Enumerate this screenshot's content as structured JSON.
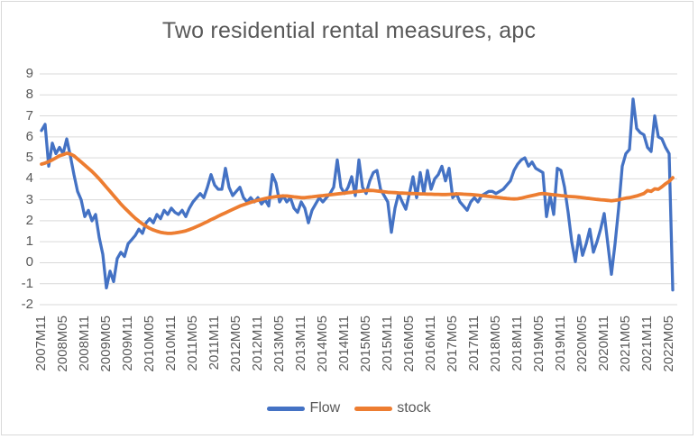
{
  "page": {
    "background": "#ffffff",
    "frame_border_color": "#d9d9d9"
  },
  "chart_data": {
    "type": "line",
    "title": "Two residential rental measures, apc",
    "title_color": "#595959",
    "axis_text_color": "#595959",
    "gridline_color": "#d9d9d9",
    "grid": "horizontal",
    "legend_position": "bottom",
    "x_start": "2007M11",
    "x_end": "2022M06",
    "x_frequency": "monthly",
    "x_tick_labels": [
      "2007M11",
      "2008M05",
      "2008M11",
      "2009M05",
      "2009M11",
      "2010M05",
      "2010M11",
      "2011M05",
      "2011M11",
      "2012M05",
      "2012M11",
      "2013M05",
      "2013M11",
      "2014M05",
      "2014M11",
      "2015M05",
      "2015M11",
      "2016M05",
      "2016M11",
      "2017M05",
      "2017M11",
      "2018M05",
      "2018M11",
      "2019M05",
      "2019M11",
      "2020M05",
      "2020M11",
      "2021M05",
      "2021M11",
      "2022M05"
    ],
    "x_ticks_every_n_points": 6,
    "y_ticks": [
      9,
      8,
      7,
      6,
      5,
      4,
      3,
      2,
      1,
      0,
      -1,
      -2
    ],
    "ylim": [
      -2,
      9
    ],
    "series": [
      {
        "name": "Flow",
        "color": "#4472C4",
        "values": [
          6.3,
          6.6,
          4.6,
          5.7,
          5.2,
          5.5,
          5.2,
          5.9,
          5.1,
          4.2,
          3.4,
          3.0,
          2.2,
          2.5,
          2.0,
          2.3,
          1.2,
          0.4,
          -1.2,
          -0.4,
          -0.9,
          0.2,
          0.5,
          0.3,
          0.9,
          1.1,
          1.3,
          1.6,
          1.4,
          1.9,
          2.1,
          1.9,
          2.3,
          2.1,
          2.5,
          2.3,
          2.6,
          2.4,
          2.3,
          2.5,
          2.2,
          2.6,
          2.9,
          3.1,
          3.3,
          3.1,
          3.6,
          4.2,
          3.7,
          3.5,
          3.5,
          4.5,
          3.6,
          3.2,
          3.4,
          3.6,
          3.1,
          2.9,
          3.1,
          2.9,
          3.1,
          2.8,
          3.0,
          2.7,
          4.2,
          3.8,
          2.9,
          3.2,
          2.9,
          3.1,
          2.6,
          2.4,
          2.9,
          2.6,
          1.9,
          2.5,
          2.8,
          3.1,
          2.9,
          3.1,
          3.3,
          3.6,
          4.9,
          3.6,
          3.3,
          3.6,
          4.1,
          3.2,
          4.9,
          3.6,
          3.3,
          3.9,
          4.3,
          4.4,
          3.5,
          3.2,
          2.9,
          1.45,
          2.6,
          3.3,
          2.9,
          2.55,
          3.3,
          4.1,
          3.1,
          4.3,
          3.3,
          4.4,
          3.5,
          4.0,
          4.2,
          4.6,
          3.9,
          4.5,
          3.1,
          3.3,
          2.9,
          2.7,
          2.5,
          2.9,
          3.1,
          2.9,
          3.2,
          3.3,
          3.4,
          3.4,
          3.3,
          3.4,
          3.5,
          3.7,
          3.9,
          4.4,
          4.7,
          4.9,
          5.0,
          4.6,
          4.8,
          4.5,
          4.4,
          4.3,
          2.2,
          3.2,
          2.3,
          4.5,
          4.4,
          3.6,
          2.4,
          1.0,
          0.05,
          1.3,
          0.35,
          0.9,
          1.6,
          0.5,
          1.0,
          1.6,
          2.35,
          0.9,
          -0.55,
          0.9,
          2.6,
          4.6,
          5.2,
          5.4,
          7.8,
          6.4,
          6.2,
          6.1,
          5.5,
          5.3,
          7.0,
          6.0,
          5.9,
          5.5,
          5.2,
          -1.3
        ]
      },
      {
        "name": "stock",
        "color": "#ED7D31",
        "values": [
          4.7,
          4.75,
          4.82,
          4.9,
          5.0,
          5.1,
          5.15,
          5.22,
          5.18,
          5.1,
          4.95,
          4.8,
          4.65,
          4.5,
          4.35,
          4.18,
          4.0,
          3.8,
          3.6,
          3.4,
          3.2,
          3.0,
          2.8,
          2.62,
          2.45,
          2.28,
          2.12,
          1.98,
          1.85,
          1.74,
          1.64,
          1.56,
          1.5,
          1.45,
          1.42,
          1.4,
          1.4,
          1.42,
          1.45,
          1.48,
          1.52,
          1.58,
          1.65,
          1.72,
          1.8,
          1.88,
          1.96,
          2.05,
          2.13,
          2.22,
          2.3,
          2.38,
          2.46,
          2.54,
          2.62,
          2.7,
          2.76,
          2.82,
          2.88,
          2.93,
          2.98,
          3.02,
          3.06,
          3.1,
          3.12,
          3.15,
          3.17,
          3.18,
          3.18,
          3.16,
          3.14,
          3.12,
          3.1,
          3.1,
          3.12,
          3.14,
          3.16,
          3.18,
          3.2,
          3.22,
          3.24,
          3.26,
          3.28,
          3.3,
          3.32,
          3.34,
          3.36,
          3.38,
          3.4,
          3.42,
          3.44,
          3.45,
          3.44,
          3.42,
          3.4,
          3.38,
          3.36,
          3.35,
          3.34,
          3.33,
          3.32,
          3.31,
          3.3,
          3.3,
          3.29,
          3.28,
          3.28,
          3.27,
          3.27,
          3.26,
          3.26,
          3.25,
          3.25,
          3.26,
          3.27,
          3.28,
          3.28,
          3.27,
          3.26,
          3.25,
          3.24,
          3.22,
          3.2,
          3.18,
          3.16,
          3.14,
          3.12,
          3.1,
          3.08,
          3.06,
          3.05,
          3.04,
          3.05,
          3.08,
          3.12,
          3.16,
          3.2,
          3.24,
          3.28,
          3.3,
          3.28,
          3.26,
          3.24,
          3.22,
          3.2,
          3.18,
          3.16,
          3.15,
          3.14,
          3.12,
          3.1,
          3.08,
          3.06,
          3.04,
          3.02,
          3.0,
          2.99,
          2.97,
          2.95,
          2.97,
          3.0,
          3.04,
          3.08,
          3.1,
          3.14,
          3.18,
          3.24,
          3.3,
          3.44,
          3.4,
          3.52,
          3.5,
          3.62,
          3.76,
          3.88,
          4.05
        ]
      }
    ]
  }
}
